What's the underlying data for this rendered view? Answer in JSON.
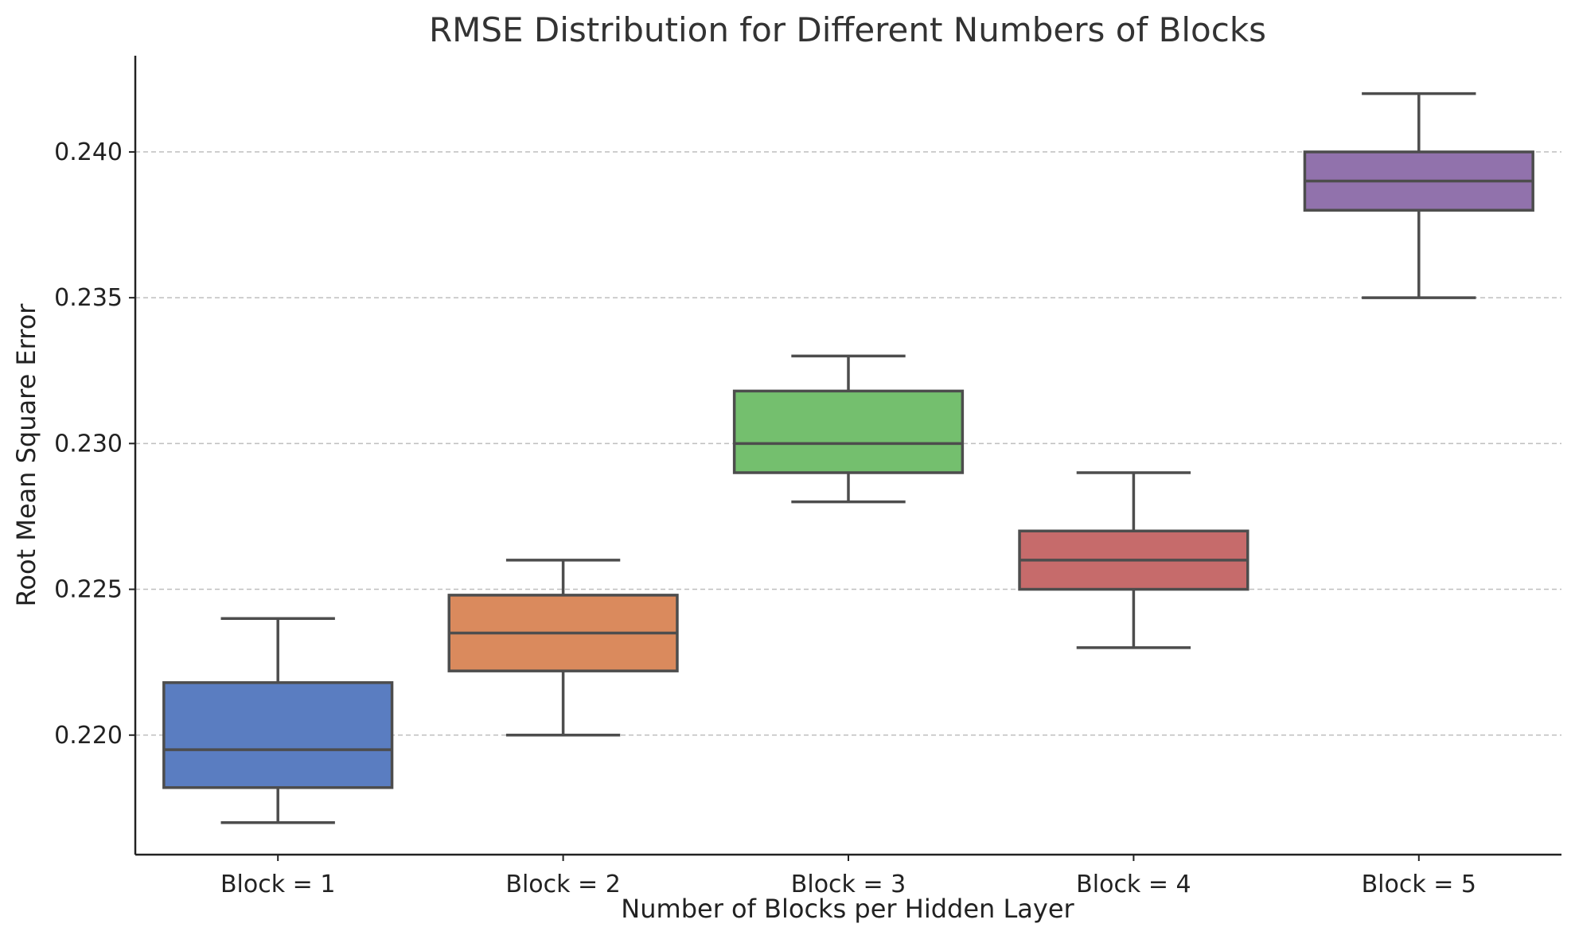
{
  "chart_data": {
    "type": "box",
    "title": "RMSE Distribution for Different Numbers of Blocks",
    "xlabel": "Number of Blocks per Hidden Layer",
    "ylabel": "Root Mean Square Error",
    "categories": [
      "Block = 1",
      "Block = 2",
      "Block = 3",
      "Block = 4",
      "Block = 5"
    ],
    "ylim": [
      0.2159,
      0.2433
    ],
    "yticks": [
      0.22,
      0.225,
      0.23,
      0.235,
      0.24
    ],
    "ytick_labels": [
      "0.220",
      "0.225",
      "0.230",
      "0.235",
      "0.240"
    ],
    "grid": true,
    "boxes": [
      {
        "whisker_low": 0.217,
        "q1": 0.2182,
        "median": 0.2195,
        "q3": 0.2218,
        "whisker_high": 0.224,
        "color": "#5a7dc1"
      },
      {
        "whisker_low": 0.22,
        "q1": 0.2222,
        "median": 0.2235,
        "q3": 0.2248,
        "whisker_high": 0.226,
        "color": "#da8a5d"
      },
      {
        "whisker_low": 0.228,
        "q1": 0.229,
        "median": 0.23,
        "q3": 0.2318,
        "whisker_high": 0.233,
        "color": "#74bf6e"
      },
      {
        "whisker_low": 0.223,
        "q1": 0.225,
        "median": 0.226,
        "q3": 0.227,
        "whisker_high": 0.229,
        "color": "#c66b6b"
      },
      {
        "whisker_low": 0.235,
        "q1": 0.238,
        "median": 0.239,
        "q3": 0.24,
        "whisker_high": 0.242,
        "color": "#9172ac"
      }
    ]
  }
}
